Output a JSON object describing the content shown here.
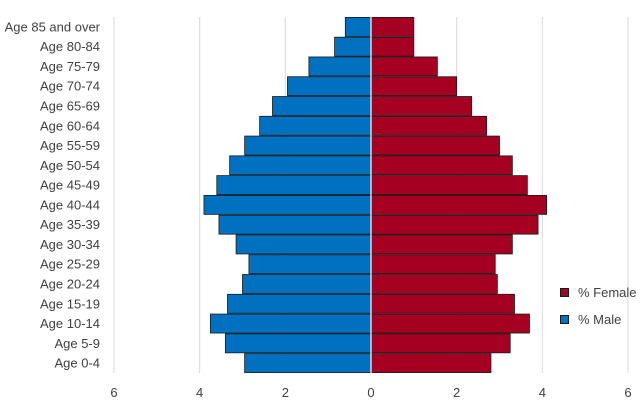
{
  "chart_data": {
    "type": "bar",
    "orientation": "horizontal",
    "title": "",
    "xlabel": "",
    "ylabel": "",
    "categories": [
      "Age 0-4",
      "Age 5-9",
      "Age 10-14",
      "Age 15-19",
      "Age 20-24",
      "Age 25-29",
      "Age 30-34",
      "Age 35-39",
      "Age 40-44",
      "Age 45-49",
      "Age 50-54",
      "Age 55-59",
      "Age 60-64",
      "Age 65-69",
      "Age 70-74",
      "Age 75-79",
      "Age 80-84",
      "Age 85 and over"
    ],
    "series": [
      {
        "name": "% Male",
        "color": "#0070c0",
        "values": [
          2.95,
          3.4,
          3.75,
          3.35,
          3.0,
          2.85,
          3.15,
          3.55,
          3.9,
          3.6,
          3.3,
          2.95,
          2.6,
          2.3,
          1.95,
          1.45,
          0.85,
          0.6
        ]
      },
      {
        "name": "% Female",
        "color": "#a50021",
        "values": [
          2.8,
          3.25,
          3.7,
          3.35,
          2.95,
          2.9,
          3.3,
          3.9,
          4.1,
          3.65,
          3.3,
          3.0,
          2.7,
          2.35,
          2.0,
          1.55,
          1.0,
          1.0
        ]
      }
    ],
    "xlim": [
      -6,
      6
    ],
    "xticks": [
      6,
      4,
      2,
      0,
      2,
      4,
      6
    ],
    "xtick_values": [
      -6,
      -4,
      -2,
      0,
      2,
      4,
      6
    ],
    "grid": true,
    "legend_position": "right",
    "legend_order": [
      "% Female",
      "% Male"
    ]
  }
}
